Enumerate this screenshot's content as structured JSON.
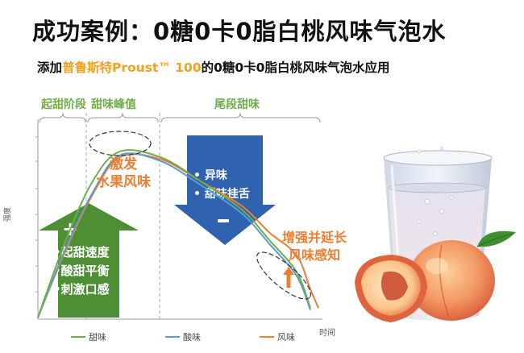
{
  "title": "成功案例：0糖0卡0脂白桃风味气泡水",
  "subtitle": {
    "prefix": "添加",
    "brand": "普鲁斯特Proust™ 100",
    "suffix": "的0糖0卡0脂白桃风味气泡水应用"
  },
  "colors": {
    "sweet": "#70ad47",
    "sour": "#5b9bd5",
    "flavor": "#ed7d31",
    "phase_label": "#70ad47",
    "callout": "#ed7d31",
    "plus_arrow": "#4e8f35",
    "minus_arrow": "#2f63b0"
  },
  "chart_data": {
    "type": "line",
    "xlabel": "时间",
    "ylabel": "强度",
    "phases": [
      "起甜阶段",
      "甜味峰值",
      "尾段甜味"
    ],
    "series": [
      {
        "name": "甜味",
        "x": [
          0,
          0.1,
          0.2,
          0.3,
          0.45,
          0.6,
          0.75,
          0.85,
          0.95,
          1.0
        ],
        "y": [
          0,
          0.4,
          0.72,
          0.88,
          0.85,
          0.72,
          0.57,
          0.41,
          0.24,
          0.05
        ]
      },
      {
        "name": "酸味",
        "x": [
          0,
          0.1,
          0.2,
          0.3,
          0.45,
          0.6,
          0.75,
          0.85,
          0.95,
          1.0
        ],
        "y": [
          0,
          0.36,
          0.66,
          0.86,
          0.83,
          0.7,
          0.55,
          0.39,
          0.22,
          0.04
        ]
      },
      {
        "name": "风味",
        "x": [
          0,
          0.1,
          0.2,
          0.3,
          0.45,
          0.6,
          0.75,
          0.85,
          0.95,
          1.0,
          1.03
        ],
        "y": [
          0,
          0.35,
          0.65,
          0.85,
          0.84,
          0.72,
          0.59,
          0.45,
          0.33,
          0.15,
          0.05
        ]
      }
    ],
    "annotations": {
      "peak_label": "激发\n水果风味",
      "extend_label": "增强并延长\n风味感知",
      "plus_symbol": "+",
      "plus_items": [
        "•起甜速度",
        "•酸甜平衡",
        "•刺激口感"
      ],
      "minus_symbol": "-",
      "minus_items": [
        "• 异味",
        "• 甜味挂舌"
      ]
    }
  }
}
